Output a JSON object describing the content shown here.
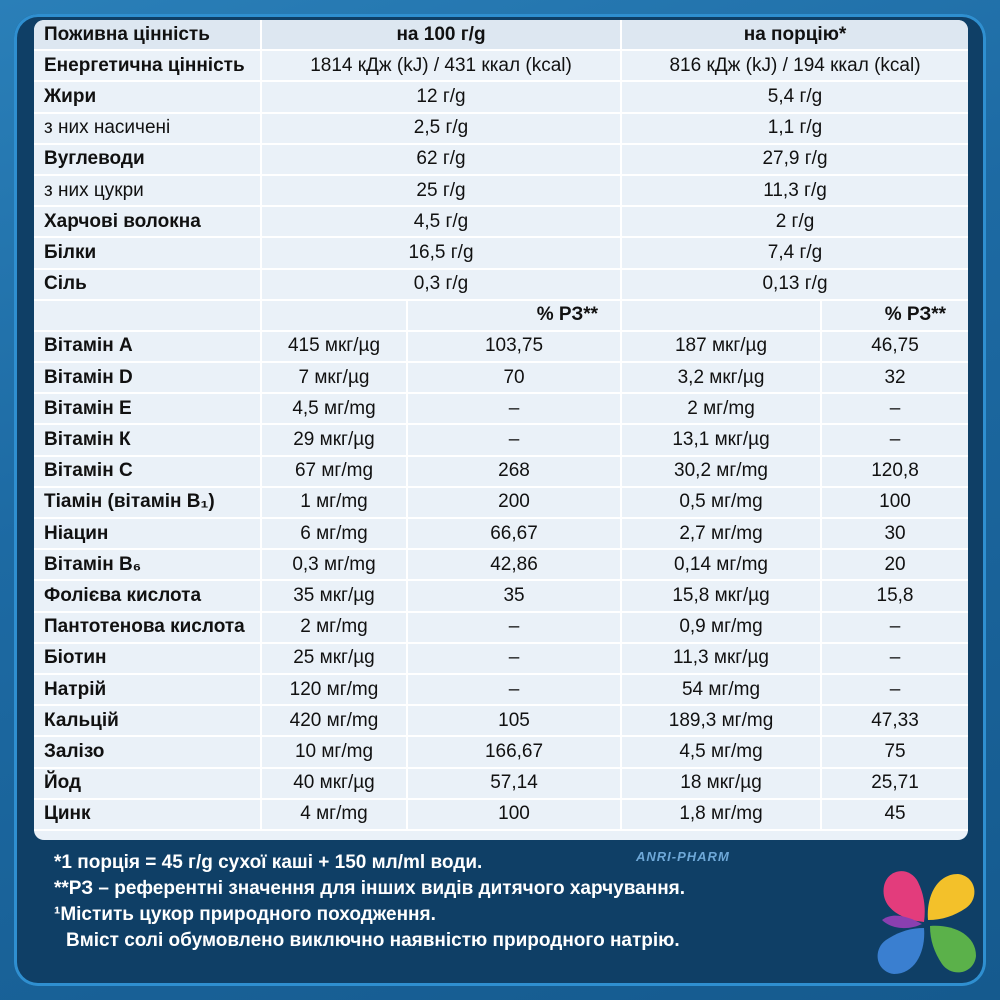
{
  "header": {
    "col_label": "Поживна цінність",
    "col_100": "на 100 г/g",
    "col_portion": "на порцію*"
  },
  "nutrients": [
    {
      "label": "Енергетична цінність",
      "per100": "1814 кДж (kJ) / 431 ккал (kcal)",
      "portion": "816 кДж (kJ) / 194 ккал (kcal)",
      "sub": false
    },
    {
      "label": "Жири",
      "per100": "12 г/g",
      "portion": "5,4 г/g",
      "sub": false
    },
    {
      "label": "з них насичені",
      "per100": "2,5 г/g",
      "portion": "1,1 г/g",
      "sub": true
    },
    {
      "label": "Вуглеводи",
      "per100": "62 г/g",
      "portion": "27,9 г/g",
      "sub": false
    },
    {
      "label": "з них цукри",
      "per100": "25 г/g",
      "portion": "11,3 г/g",
      "sub": true
    },
    {
      "label": "Харчові волокна",
      "per100": "4,5 г/g",
      "portion": "2 г/g",
      "sub": false
    },
    {
      "label": "Білки",
      "per100": "16,5 г/g",
      "portion": "7,4 г/g",
      "sub": false
    },
    {
      "label": "Сіль",
      "per100": "0,3 г/g",
      "portion": "0,13 г/g",
      "sub": false
    }
  ],
  "rz_header": {
    "per100": "% РЗ**",
    "portion": "% РЗ**"
  },
  "vitamins": [
    {
      "label": "Вітамін А",
      "per100": "415 мкг/µg",
      "rz100": "103,75",
      "portion": "187 мкг/µg",
      "rzp": "46,75"
    },
    {
      "label": "Вітамін D",
      "per100": "7 мкг/µg",
      "rz100": "70",
      "portion": "3,2 мкг/µg",
      "rzp": "32"
    },
    {
      "label": "Вітамін Е",
      "per100": "4,5 мг/mg",
      "rz100": "–",
      "portion": "2 мг/mg",
      "rzp": "–"
    },
    {
      "label": "Вітамін К",
      "per100": "29 мкг/µg",
      "rz100": "–",
      "portion": "13,1 мкг/µg",
      "rzp": "–"
    },
    {
      "label": "Вітамін С",
      "per100": "67 мг/mg",
      "rz100": "268",
      "portion": "30,2 мг/mg",
      "rzp": "120,8"
    },
    {
      "label": "Тіамін (вітамін В₁)",
      "per100": "1 мг/mg",
      "rz100": "200",
      "portion": "0,5 мг/mg",
      "rzp": "100"
    },
    {
      "label": "Ніацин",
      "per100": "6 мг/mg",
      "rz100": "66,67",
      "portion": "2,7 мг/mg",
      "rzp": "30"
    },
    {
      "label": "Вітамін В₆",
      "per100": "0,3 мг/mg",
      "rz100": "42,86",
      "portion": "0,14 мг/mg",
      "rzp": "20"
    },
    {
      "label": "Фолієва кислота",
      "per100": "35 мкг/µg",
      "rz100": "35",
      "portion": "15,8 мкг/µg",
      "rzp": "15,8"
    },
    {
      "label": "Пантотенова кислота",
      "per100": "2 мг/mg",
      "rz100": "–",
      "portion": "0,9 мг/mg",
      "rzp": "–"
    },
    {
      "label": "Біотин",
      "per100": "25 мкг/µg",
      "rz100": "–",
      "portion": "11,3 мкг/µg",
      "rzp": "–"
    },
    {
      "label": "Натрій",
      "per100": "120 мг/mg",
      "rz100": "–",
      "portion": "54 мг/mg",
      "rzp": "–"
    },
    {
      "label": "Кальцій",
      "per100": "420 мг/mg",
      "rz100": "105",
      "portion": "189,3 мг/mg",
      "rzp": "47,33"
    },
    {
      "label": "Залізо",
      "per100": "10 мг/mg",
      "rz100": "166,67",
      "portion": "4,5 мг/mg",
      "rzp": "75"
    },
    {
      "label": "Йод",
      "per100": "40 мкг/µg",
      "rz100": "57,14",
      "portion": "18 мкг/µg",
      "rzp": "25,71"
    },
    {
      "label": "Цинк",
      "per100": "4 мг/mg",
      "rz100": "100",
      "portion": "1,8 мг/mg",
      "rzp": "45"
    }
  ],
  "footnotes": [
    "*1 порція = 45 г/g сухої каші + 150 мл/ml води.",
    "**РЗ – референтні значення для інших видів дитячого харчування.",
    "¹Містить цукор природного походження.",
    "Вміст солі обумовлено виключно наявністю природного натрію."
  ],
  "brand": "ANRI-PHARM",
  "colors": {
    "panel": "#eaf1f8",
    "frame": "#0f3f66",
    "accent": "#2f8fd0"
  }
}
